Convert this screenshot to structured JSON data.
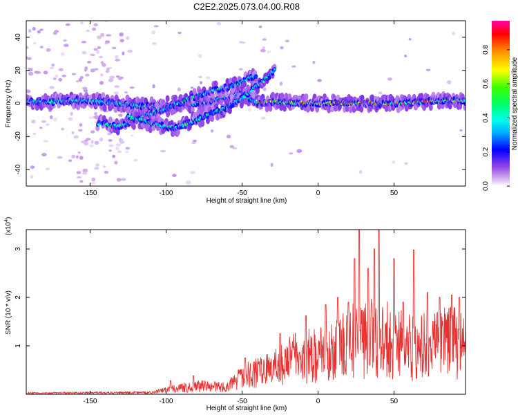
{
  "title": "C2E2.2025.073.04.00.R08",
  "chart_data": [
    {
      "type": "heatmap",
      "xlabel": "Height of straight line (km)",
      "ylabel": "Frequency (Hz)",
      "xlim": [
        -192,
        97
      ],
      "ylim": [
        -50,
        50
      ],
      "x_ticks": [
        "-150",
        "-100",
        "-50",
        "0",
        "50"
      ],
      "x_tick_values": [
        -150,
        -100,
        -50,
        0,
        50
      ],
      "y_ticks": [
        "-40",
        "-20",
        "0",
        "20",
        "40"
      ],
      "y_tick_values": [
        -40,
        -20,
        0,
        20,
        40
      ],
      "colorbar": {
        "label": "Normalized spectral amplitude",
        "ticks": [
          "0.0",
          "0.2",
          "0.4",
          "0.6",
          "0.8"
        ],
        "tick_values": [
          0,
          0.2,
          0.4,
          0.6,
          0.8
        ],
        "range": [
          0,
          0.97
        ]
      },
      "traces": [
        {
          "x": [
            -192,
            -175,
            -160,
            -145,
            -130,
            -115,
            -100,
            -80,
            -65,
            -50,
            -40,
            -30,
            -10,
            10,
            30,
            50,
            70,
            90,
            97
          ],
          "y": [
            1,
            1,
            2,
            1,
            0,
            -2,
            -1,
            0,
            3,
            6,
            0,
            1,
            0,
            0,
            0,
            0,
            1,
            2,
            1
          ]
        },
        {
          "x": [
            -145,
            -132,
            -120,
            -110,
            -100,
            -90,
            -78,
            -68,
            -58,
            -48,
            -40
          ],
          "y": [
            -12,
            -14,
            -10,
            -6,
            -3,
            1,
            5,
            8,
            10,
            14,
            17
          ]
        },
        {
          "x": [
            -125,
            -110,
            -95,
            -85,
            -75,
            -65
          ],
          "y": [
            -8,
            -12,
            -15,
            -12,
            -8,
            -4
          ]
        },
        {
          "x": [
            -65,
            -58,
            -50,
            -44,
            -38,
            -33,
            -28
          ],
          "y": [
            -5,
            -1,
            3,
            8,
            12,
            16,
            21
          ]
        }
      ]
    },
    {
      "type": "line",
      "xlabel": "Height of straight line (km)",
      "ylabel": "SNR (10 * v/v)",
      "y_multiplier": "(x10",
      "y_multiplier_exp": "4",
      "y_multiplier_close": ")",
      "xlim": [
        -192,
        97
      ],
      "ylim": [
        0,
        3.4
      ],
      "x_ticks": [
        "-150",
        "-100",
        "-50",
        "0",
        "50"
      ],
      "x_tick_values": [
        -150,
        -100,
        -50,
        0,
        50
      ],
      "y_ticks": [
        "1",
        "2",
        "3"
      ],
      "y_tick_values": [
        1,
        2,
        3
      ],
      "series": [
        {
          "color": "#e83030",
          "envelope": [
            [
              -192,
              0.04
            ],
            [
              -150,
              0.05
            ],
            [
              -110,
              0.06
            ],
            [
              -100,
              0.15
            ],
            [
              -80,
              0.3
            ],
            [
              -60,
              0.25
            ],
            [
              -50,
              0.6
            ],
            [
              -45,
              0.7
            ],
            [
              -35,
              0.8
            ],
            [
              -25,
              1.1
            ],
            [
              -15,
              1.3
            ],
            [
              0,
              1.4
            ],
            [
              10,
              1.5
            ],
            [
              20,
              1.8
            ],
            [
              30,
              2.1
            ],
            [
              40,
              2.0
            ],
            [
              55,
              1.8
            ],
            [
              70,
              1.7
            ],
            [
              85,
              1.8
            ],
            [
              97,
              1.9
            ]
          ],
          "peaks": [
            [
              -97,
              0.28
            ],
            [
              -82,
              0.38
            ],
            [
              -48,
              0.75
            ],
            [
              -25,
              1.25
            ],
            [
              -8,
              1.62
            ],
            [
              5,
              1.85
            ],
            [
              13,
              2.0
            ],
            [
              20,
              1.9
            ],
            [
              24,
              2.8
            ],
            [
              27,
              3.4
            ],
            [
              33,
              2.6
            ],
            [
              37,
              3.0
            ],
            [
              40,
              3.4
            ],
            [
              50,
              2.8
            ],
            [
              56,
              1.9
            ],
            [
              63,
              2.98
            ],
            [
              72,
              2.1
            ],
            [
              80,
              2.0
            ],
            [
              88,
              2.05
            ],
            [
              93,
              2.0
            ]
          ]
        }
      ]
    }
  ]
}
